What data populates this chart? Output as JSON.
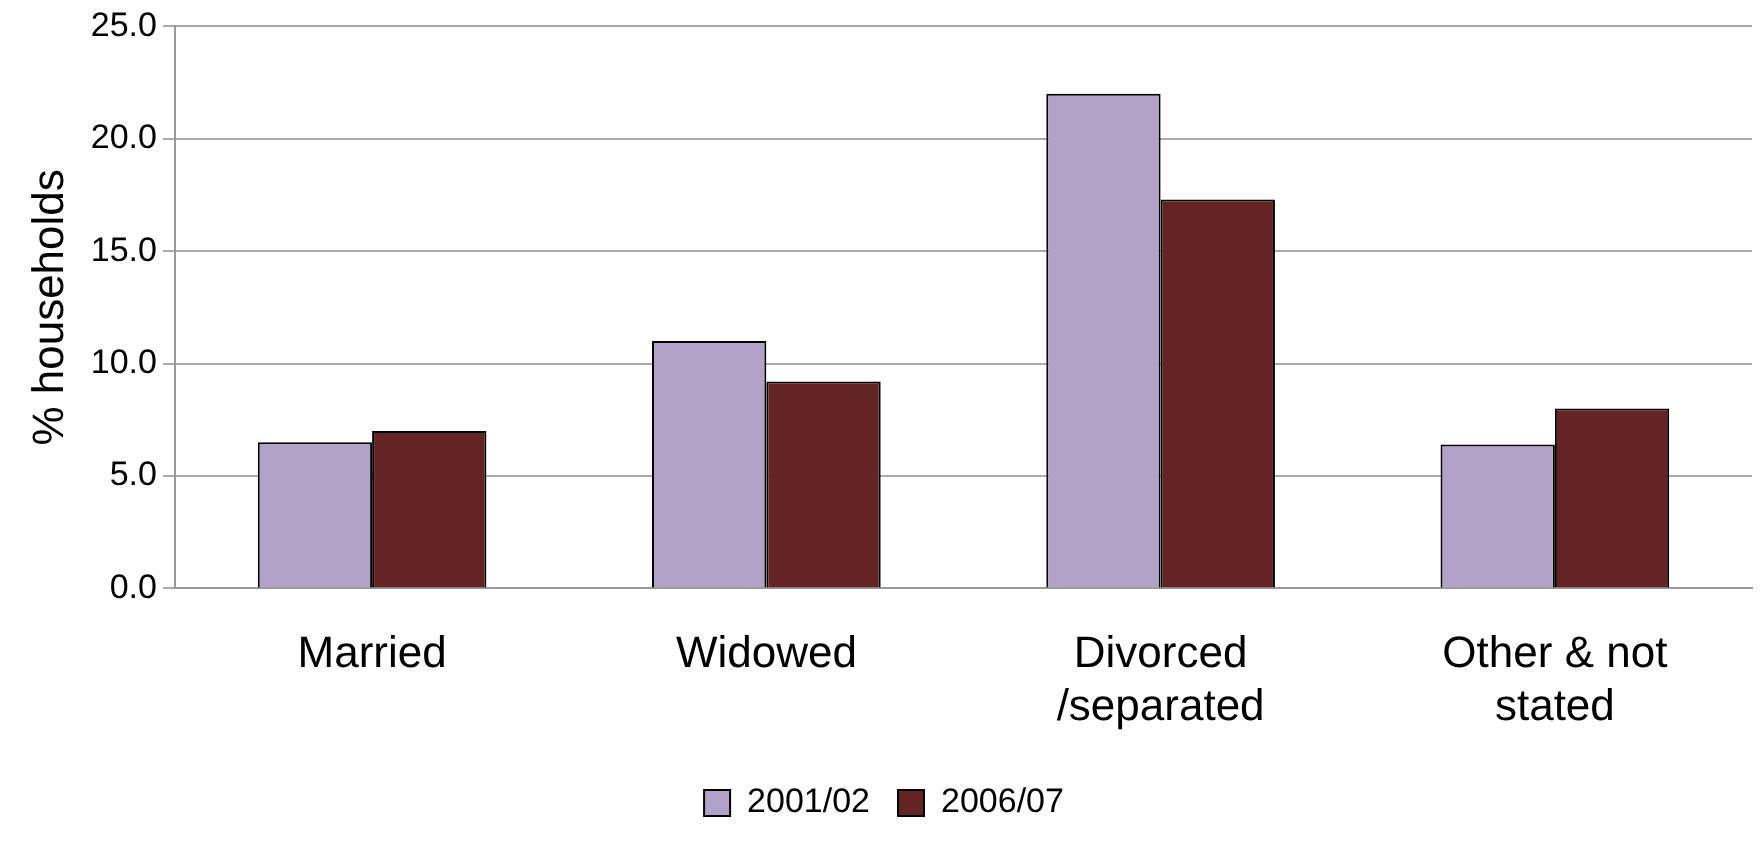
{
  "chart_data": {
    "type": "bar",
    "ylabel": "% households",
    "categories": [
      "Married",
      "Widowed",
      "Divorced /separated",
      "Other & not stated"
    ],
    "series": [
      {
        "name": "2001/02",
        "color": "#b3a2c7",
        "values": [
          6.5,
          11.0,
          22.0,
          6.4
        ]
      },
      {
        "name": "2006/07",
        "color": "#632523",
        "values": [
          7.0,
          9.2,
          17.3,
          8.0
        ]
      }
    ],
    "ylim": [
      0,
      25
    ],
    "yticks": [
      {
        "value": 0,
        "label": "0.0"
      },
      {
        "value": 5,
        "label": "5.0"
      },
      {
        "value": 10,
        "label": "10.0"
      },
      {
        "value": 15,
        "label": "15.0"
      },
      {
        "value": 20,
        "label": "20.0"
      },
      {
        "value": 25,
        "label": "25.0"
      }
    ],
    "grid": "y",
    "legend": "bottom"
  }
}
